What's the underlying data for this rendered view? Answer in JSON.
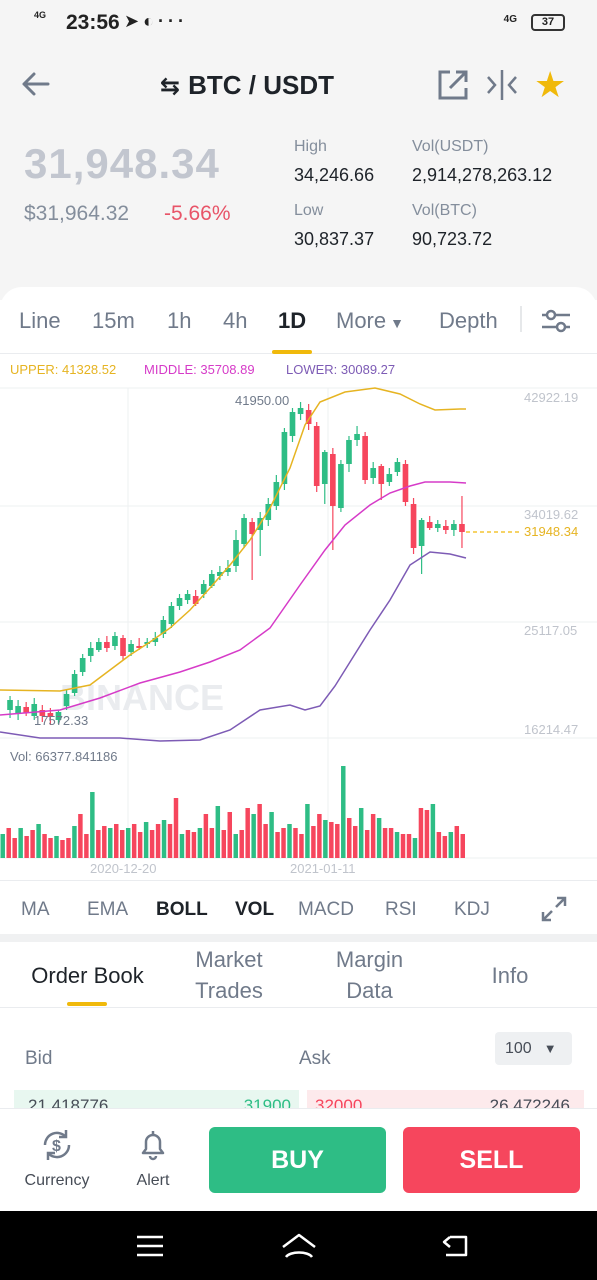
{
  "status": {
    "time": "23:56",
    "network": "4G",
    "signal_right": "4G",
    "battery": "37"
  },
  "header": {
    "pair": "BTC / USDT"
  },
  "ticker": {
    "last_price": "31,948.34",
    "usd_price": "$31,964.32",
    "change": "-5.66%",
    "high_label": "High",
    "high": "34,246.66",
    "low_label": "Low",
    "low": "30,837.37",
    "vol_usdt_label": "Vol(USDT)",
    "vol_usdt": "2,914,278,263.12",
    "vol_btc_label": "Vol(BTC)",
    "vol_btc": "90,723.72"
  },
  "intervals": [
    "Line",
    "15m",
    "1h",
    "4h",
    "1D",
    "More",
    "Depth"
  ],
  "active_interval": "1D",
  "boll": {
    "upper": "UPPER: 41328.52",
    "middle": "MIDDLE: 35708.89",
    "lower": "LOWER: 30089.27"
  },
  "chart_labels": {
    "price_levels": [
      "42922.19",
      "34019.62",
      "25117.05",
      "16214.47"
    ],
    "current": "31948.34",
    "max": "41950.00",
    "min": "17572.33",
    "vol": "Vol: 66377.841186",
    "dates": [
      "2020-12-20",
      "2021-01-11"
    ],
    "watermark": "BINANCE"
  },
  "indicators": [
    "MA",
    "EMA",
    "BOLL",
    "VOL",
    "MACD",
    "RSI",
    "KDJ"
  ],
  "orderbook_tabs": [
    {
      "l1": "Order Book",
      "l2": ""
    },
    {
      "l1": "Market",
      "l2": "Trades"
    },
    {
      "l1": "Margin",
      "l2": "Data"
    },
    {
      "l1": "Info",
      "l2": ""
    }
  ],
  "orderbook": {
    "bid_label": "Bid",
    "ask_label": "Ask",
    "depth": "100",
    "bid_qty": "21.418776",
    "bid_price": "31900",
    "ask_price": "32000",
    "ask_qty": "26.472246"
  },
  "bottom": {
    "currency": "Currency",
    "alert": "Alert",
    "buy": "BUY",
    "sell": "SELL"
  },
  "colors": {
    "up": "#2ebd85",
    "down": "#f6465d",
    "accent": "#f0b90b",
    "upper": "#e6b422",
    "middle": "#d63bc8",
    "lower": "#7d5bb5"
  }
}
